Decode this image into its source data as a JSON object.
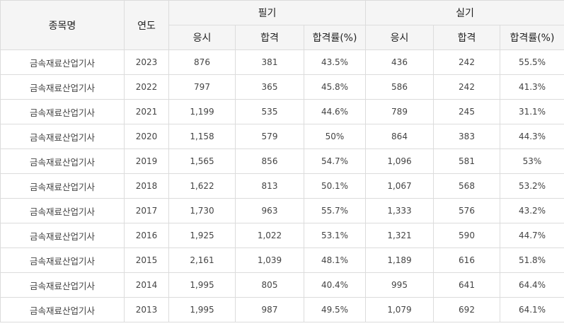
{
  "table": {
    "headers": {
      "name": "종목명",
      "year": "연도",
      "written": "필기",
      "practical": "실기",
      "applied": "응시",
      "passed": "합격",
      "rate": "합격률(%)"
    },
    "rows": [
      {
        "name": "금속재료산업기사",
        "year": "2023",
        "w_applied": "876",
        "w_passed": "381",
        "w_rate": "43.5%",
        "p_applied": "436",
        "p_passed": "242",
        "p_rate": "55.5%"
      },
      {
        "name": "금속재료산업기사",
        "year": "2022",
        "w_applied": "797",
        "w_passed": "365",
        "w_rate": "45.8%",
        "p_applied": "586",
        "p_passed": "242",
        "p_rate": "41.3%"
      },
      {
        "name": "금속재료산업기사",
        "year": "2021",
        "w_applied": "1,199",
        "w_passed": "535",
        "w_rate": "44.6%",
        "p_applied": "789",
        "p_passed": "245",
        "p_rate": "31.1%"
      },
      {
        "name": "금속재료산업기사",
        "year": "2020",
        "w_applied": "1,158",
        "w_passed": "579",
        "w_rate": "50%",
        "p_applied": "864",
        "p_passed": "383",
        "p_rate": "44.3%"
      },
      {
        "name": "금속재료산업기사",
        "year": "2019",
        "w_applied": "1,565",
        "w_passed": "856",
        "w_rate": "54.7%",
        "p_applied": "1,096",
        "p_passed": "581",
        "p_rate": "53%"
      },
      {
        "name": "금속재료산업기사",
        "year": "2018",
        "w_applied": "1,622",
        "w_passed": "813",
        "w_rate": "50.1%",
        "p_applied": "1,067",
        "p_passed": "568",
        "p_rate": "53.2%"
      },
      {
        "name": "금속재료산업기사",
        "year": "2017",
        "w_applied": "1,730",
        "w_passed": "963",
        "w_rate": "55.7%",
        "p_applied": "1,333",
        "p_passed": "576",
        "p_rate": "43.2%"
      },
      {
        "name": "금속재료산업기사",
        "year": "2016",
        "w_applied": "1,925",
        "w_passed": "1,022",
        "w_rate": "53.1%",
        "p_applied": "1,321",
        "p_passed": "590",
        "p_rate": "44.7%"
      },
      {
        "name": "금속재료산업기사",
        "year": "2015",
        "w_applied": "2,161",
        "w_passed": "1,039",
        "w_rate": "48.1%",
        "p_applied": "1,189",
        "p_passed": "616",
        "p_rate": "51.8%"
      },
      {
        "name": "금속재료산업기사",
        "year": "2014",
        "w_applied": "1,995",
        "w_passed": "805",
        "w_rate": "40.4%",
        "p_applied": "995",
        "p_passed": "641",
        "p_rate": "64.4%"
      },
      {
        "name": "금속재료산업기사",
        "year": "2013",
        "w_applied": "1,995",
        "w_passed": "987",
        "w_rate": "49.5%",
        "p_applied": "1,079",
        "p_passed": "692",
        "p_rate": "64.1%"
      }
    ]
  }
}
